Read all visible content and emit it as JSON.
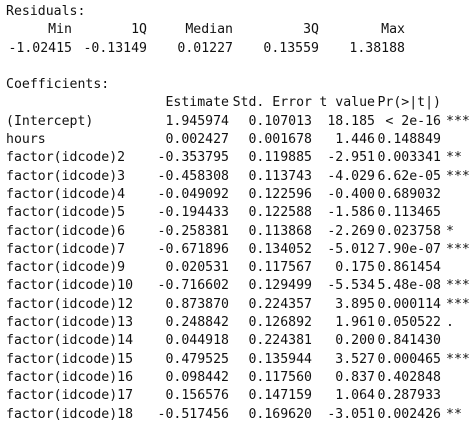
{
  "residuals": {
    "title": "Residuals:",
    "headers": [
      "Min",
      "1Q",
      "Median",
      "3Q",
      "Max"
    ],
    "values": [
      "-1.02415",
      "-0.13149",
      "0.01227",
      "0.13559",
      "1.38188"
    ]
  },
  "coefficients": {
    "title": "Coefficients:",
    "headers": [
      "Estimate",
      "Std. Error",
      "t value",
      "Pr(>|t|)"
    ],
    "rows": [
      {
        "name": "(Intercept)",
        "estimate": "1.945974",
        "se": "0.107013",
        "t": "18.185",
        "p": "< 2e-16",
        "sig": "***"
      },
      {
        "name": "hours",
        "estimate": "0.002427",
        "se": "0.001678",
        "t": "1.446",
        "p": "0.148849",
        "sig": ""
      },
      {
        "name": "factor(idcode)2",
        "estimate": "-0.353795",
        "se": "0.119885",
        "t": "-2.951",
        "p": "0.003341",
        "sig": "**"
      },
      {
        "name": "factor(idcode)3",
        "estimate": "-0.458308",
        "se": "0.113743",
        "t": "-4.029",
        "p": "6.62e-05",
        "sig": "***"
      },
      {
        "name": "factor(idcode)4",
        "estimate": "-0.049092",
        "se": "0.122596",
        "t": "-0.400",
        "p": "0.689032",
        "sig": ""
      },
      {
        "name": "factor(idcode)5",
        "estimate": "-0.194433",
        "se": "0.122588",
        "t": "-1.586",
        "p": "0.113465",
        "sig": ""
      },
      {
        "name": "factor(idcode)6",
        "estimate": "-0.258381",
        "se": "0.113868",
        "t": "-2.269",
        "p": "0.023758",
        "sig": "*"
      },
      {
        "name": "factor(idcode)7",
        "estimate": "-0.671896",
        "se": "0.134052",
        "t": "-5.012",
        "p": "7.90e-07",
        "sig": "***"
      },
      {
        "name": "factor(idcode)9",
        "estimate": "0.020531",
        "se": "0.117567",
        "t": "0.175",
        "p": "0.861454",
        "sig": ""
      },
      {
        "name": "factor(idcode)10",
        "estimate": "-0.716602",
        "se": "0.129499",
        "t": "-5.534",
        "p": "5.48e-08",
        "sig": "***"
      },
      {
        "name": "factor(idcode)12",
        "estimate": "0.873870",
        "se": "0.224357",
        "t": "3.895",
        "p": "0.000114",
        "sig": "***"
      },
      {
        "name": "factor(idcode)13",
        "estimate": "0.248842",
        "se": "0.126892",
        "t": "1.961",
        "p": "0.050522",
        "sig": "."
      },
      {
        "name": "factor(idcode)14",
        "estimate": "0.044918",
        "se": "0.224381",
        "t": "0.200",
        "p": "0.841430",
        "sig": ""
      },
      {
        "name": "factor(idcode)15",
        "estimate": "0.479525",
        "se": "0.135944",
        "t": "3.527",
        "p": "0.000465",
        "sig": "***"
      },
      {
        "name": "factor(idcode)16",
        "estimate": "0.098442",
        "se": "0.117560",
        "t": "0.837",
        "p": "0.402848",
        "sig": ""
      },
      {
        "name": "factor(idcode)17",
        "estimate": "0.156576",
        "se": "0.147159",
        "t": "1.064",
        "p": "0.287933",
        "sig": ""
      },
      {
        "name": "factor(idcode)18",
        "estimate": "-0.517456",
        "se": "0.169620",
        "t": "-3.051",
        "p": "0.002426",
        "sig": "**"
      }
    ]
  }
}
